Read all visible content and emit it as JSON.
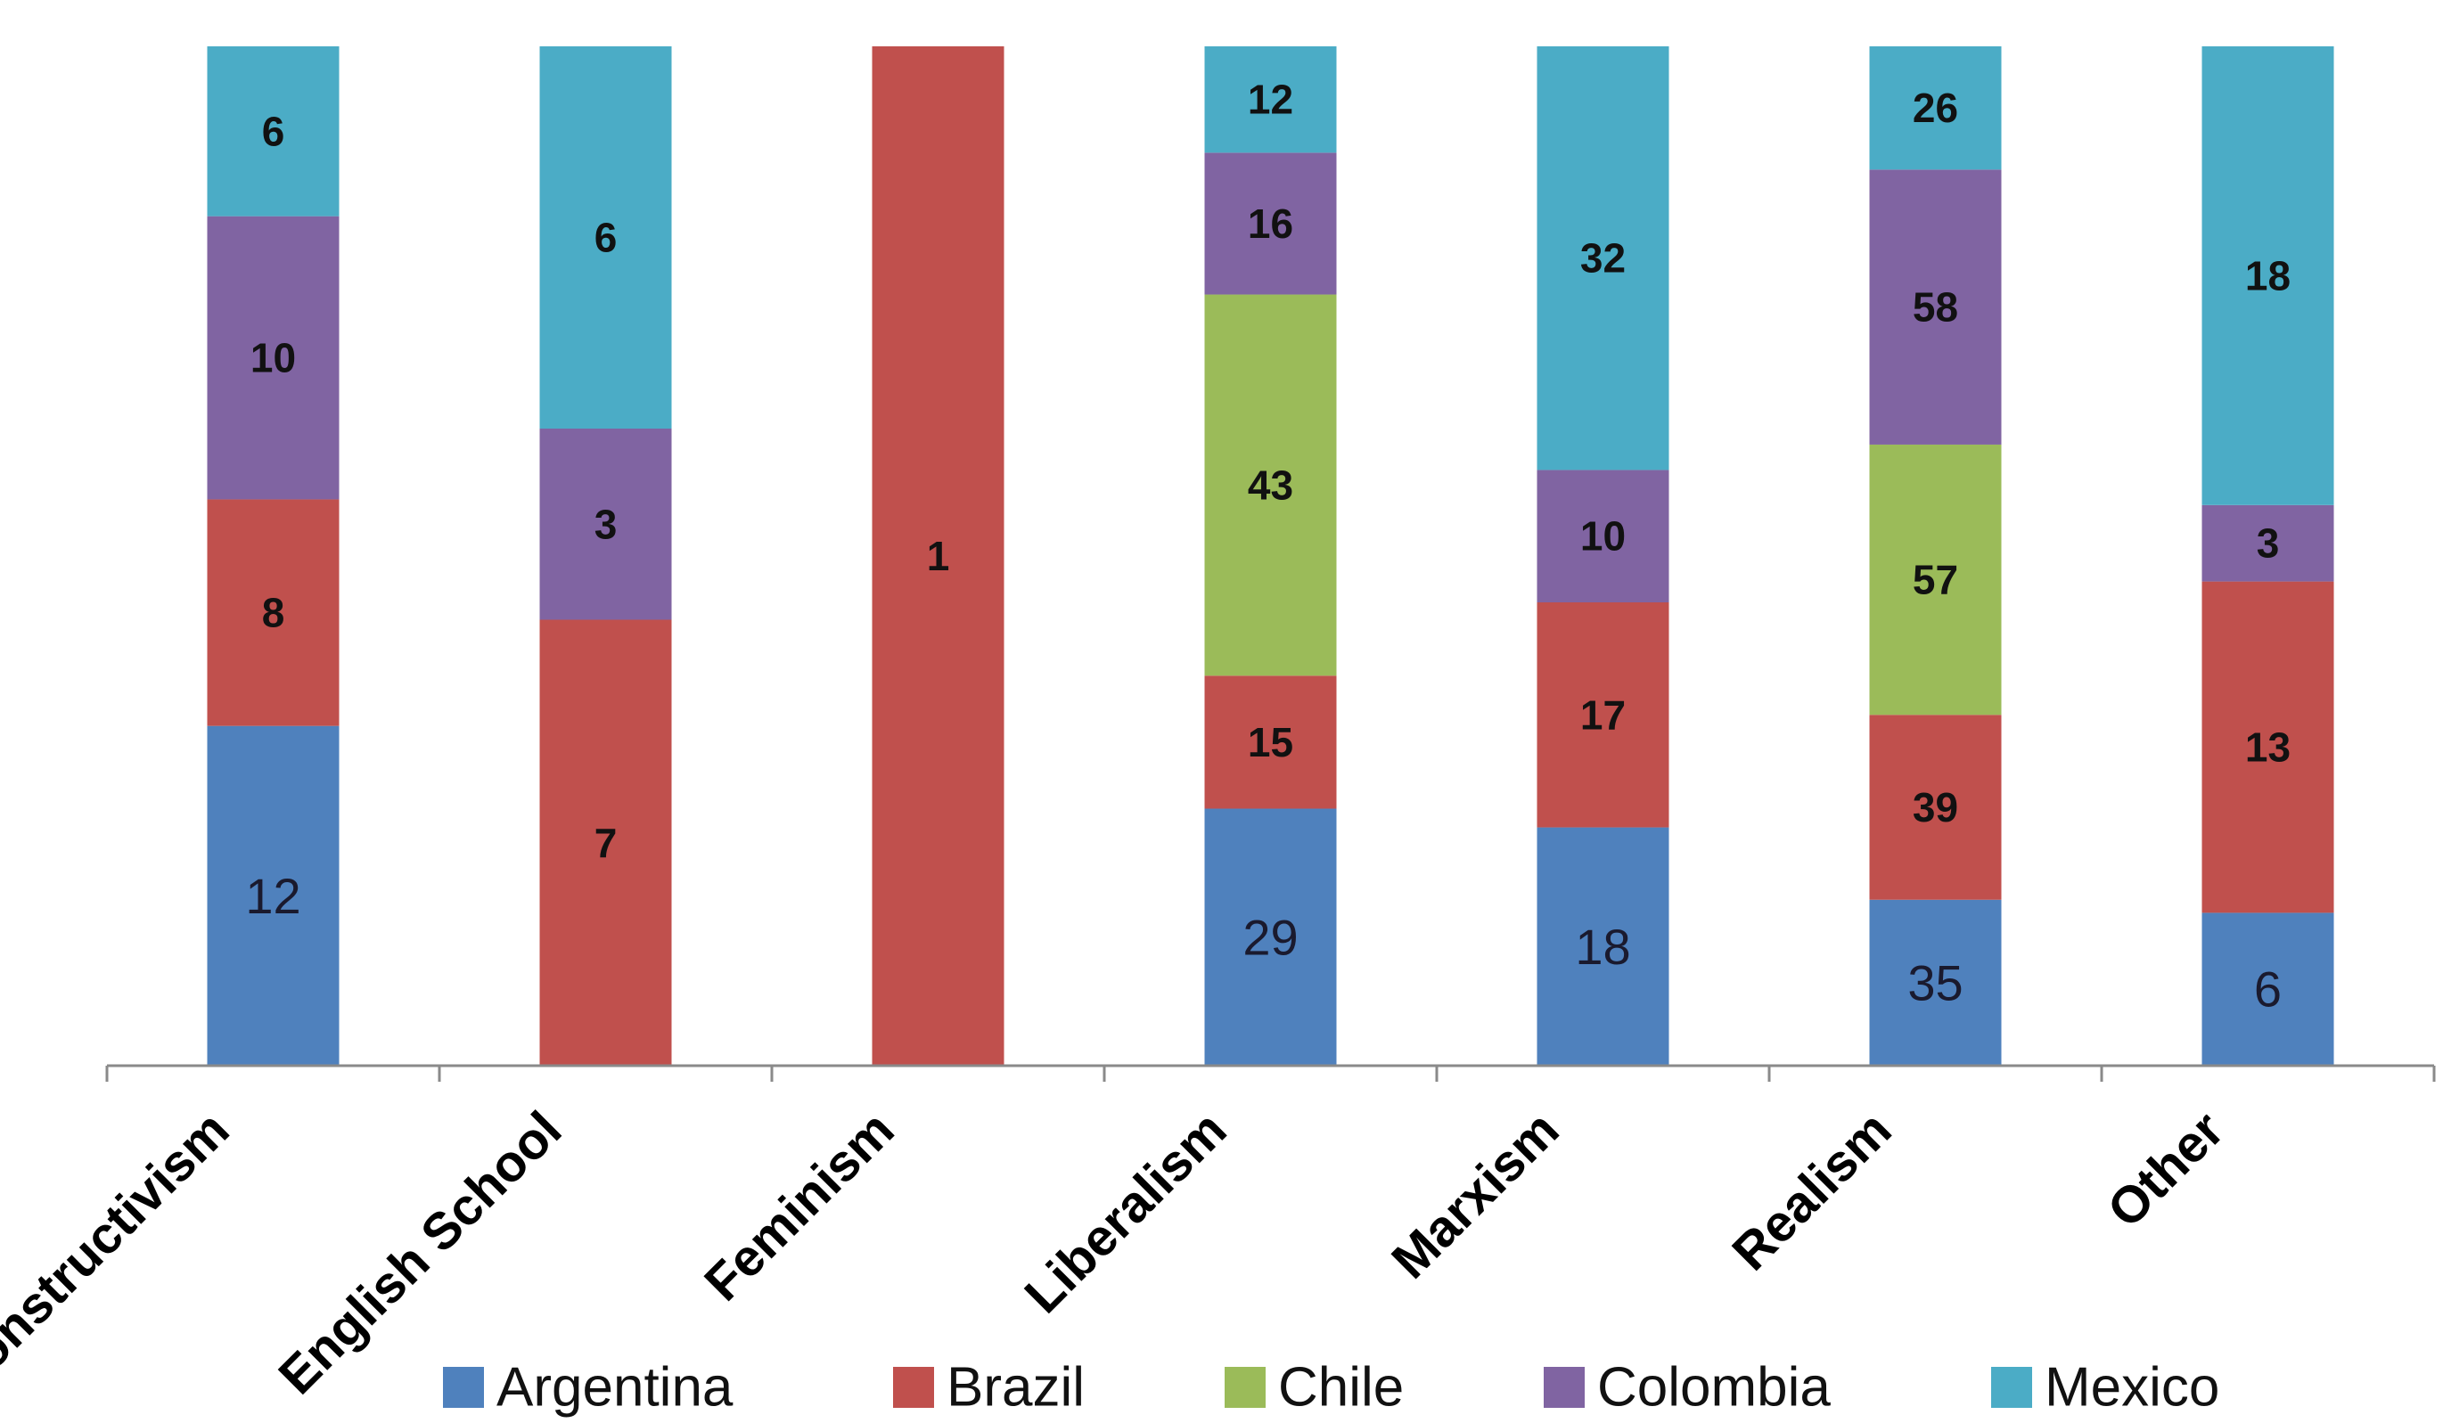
{
  "chart_data": {
    "type": "bar",
    "stacked": true,
    "normalized": true,
    "categories": [
      "Constructivism",
      "English School",
      "Feminism",
      "Liberalism",
      "Marxism",
      "Realism",
      "Other"
    ],
    "series": [
      {
        "name": "Argentina",
        "color": "#4f81bd",
        "values": [
          12,
          0,
          0,
          29,
          18,
          35,
          6
        ]
      },
      {
        "name": "Brazil",
        "color": "#c0504d",
        "values": [
          8,
          7,
          1,
          15,
          17,
          39,
          13
        ]
      },
      {
        "name": "Chile",
        "color": "#9bbb59",
        "values": [
          0,
          0,
          0,
          43,
          0,
          57,
          0
        ]
      },
      {
        "name": "Colombia",
        "color": "#8064a2",
        "values": [
          10,
          3,
          0,
          16,
          10,
          58,
          3
        ]
      },
      {
        "name": "Mexico",
        "color": "#4bacc6",
        "values": [
          6,
          6,
          0,
          12,
          32,
          26,
          18
        ]
      }
    ],
    "legend": {
      "position": "bottom"
    },
    "title": "",
    "xlabel": "",
    "ylabel": ""
  }
}
